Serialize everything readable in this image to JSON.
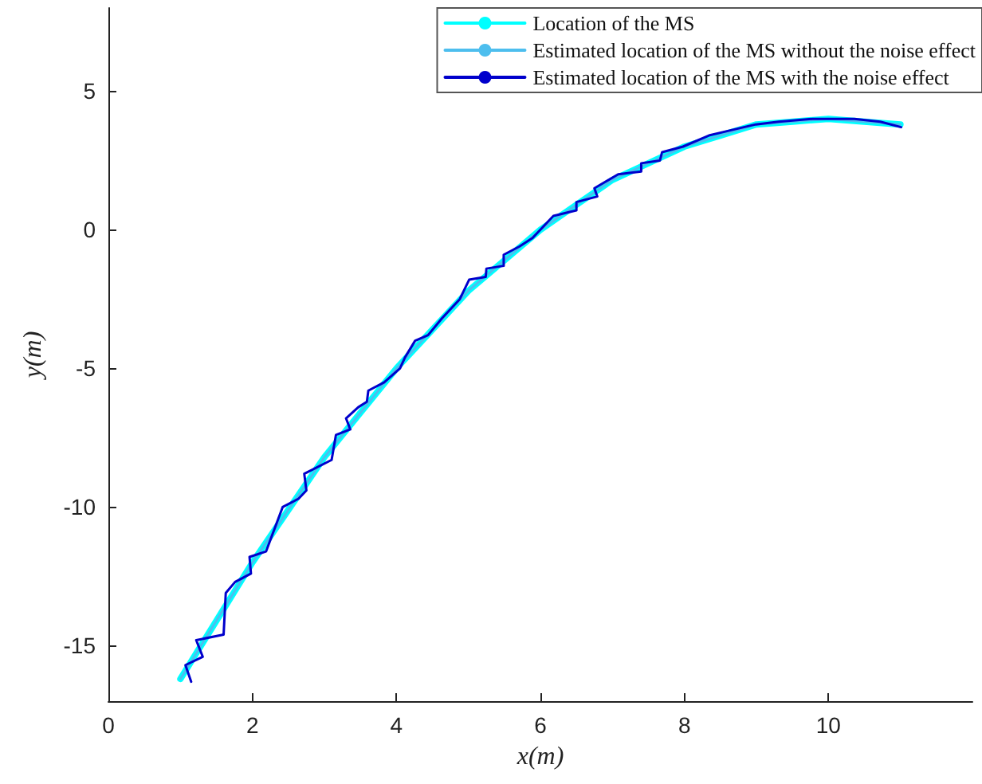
{
  "chart_data": {
    "type": "line",
    "xlabel": "x(m)",
    "ylabel": "y(m)",
    "xlim": [
      0,
      12
    ],
    "xticks": [
      0,
      2,
      4,
      6,
      8,
      10
    ],
    "ylim": [
      -17,
      8
    ],
    "yticks": [
      -15,
      -10,
      -5,
      0,
      5
    ],
    "grid": false,
    "legend": "top right",
    "marker": "none",
    "line_style": "solid",
    "series": [
      {
        "name": "Location of the MS",
        "color": "#00ffff",
        "x": [
          1,
          1.5,
          2,
          2.5,
          3,
          3.5,
          4,
          4.5,
          5,
          5.5,
          6,
          6.5,
          7,
          7.5,
          8,
          8.5,
          9,
          9.5,
          10,
          10.5,
          11
        ],
        "values": [
          -16.2,
          -14.1,
          -12,
          -10.1,
          -8.2,
          -6.6,
          -5,
          -3.6,
          -2.2,
          -1.1,
          0,
          0.9,
          1.8,
          2.4,
          3,
          3.4,
          3.8,
          3.9,
          4,
          3.9,
          3.8
        ]
      },
      {
        "name": "Estimated location of the MS without the noise effect",
        "color": "#4dbeee",
        "x": [
          1,
          1.5,
          2,
          2.5,
          3,
          3.5,
          4,
          4.5,
          5,
          5.5,
          6,
          6.5,
          7,
          7.5,
          8,
          8.5,
          9,
          9.5,
          10,
          10.5,
          11
        ],
        "values": [
          -16.2,
          -14.1,
          -12,
          -10.1,
          -8.2,
          -6.6,
          -5,
          -3.6,
          -2.2,
          -1.1,
          0,
          0.9,
          1.8,
          2.4,
          3,
          3.4,
          3.8,
          3.9,
          4,
          3.9,
          3.8
        ]
      },
      {
        "name": "Estimated location of the MS with the noise effect",
        "color": "#0000cc",
        "x": [
          1.15,
          1.07,
          1.31,
          1.22,
          1.6,
          1.63,
          1.76,
          1.98,
          1.96,
          2.19,
          2.42,
          2.64,
          2.75,
          2.72,
          3.1,
          3.16,
          3.36,
          3.3,
          3.47,
          3.59,
          3.61,
          3.83,
          4.05,
          4.12,
          4.26,
          4.44,
          4.63,
          4.88,
          5.01,
          5.24,
          5.25,
          5.49,
          5.49,
          5.71,
          5.89,
          6.18,
          6.5,
          6.5,
          6.79,
          6.75,
          7.08,
          7.4,
          7.4,
          7.66,
          7.69,
          7.98,
          8.34,
          8.66,
          8.99,
          9.31,
          9.78,
          10.11,
          10.36,
          10.72,
          11.01
        ],
        "values": [
          -16.3,
          -15.7,
          -15.4,
          -14.8,
          -14.6,
          -13.1,
          -12.7,
          -12.4,
          -11.8,
          -11.6,
          -10,
          -9.7,
          -9.4,
          -8.8,
          -8.3,
          -7.4,
          -7.2,
          -6.8,
          -6.4,
          -6.2,
          -5.8,
          -5.5,
          -5,
          -4.6,
          -4,
          -3.8,
          -3.2,
          -2.5,
          -1.8,
          -1.7,
          -1.4,
          -1.3,
          -0.9,
          -0.6,
          -0.3,
          0.5,
          0.7,
          1,
          1.2,
          1.5,
          2,
          2.1,
          2.4,
          2.5,
          2.8,
          3,
          3.4,
          3.6,
          3.8,
          3.9,
          4,
          4,
          4,
          3.9,
          3.7
        ]
      }
    ]
  }
}
